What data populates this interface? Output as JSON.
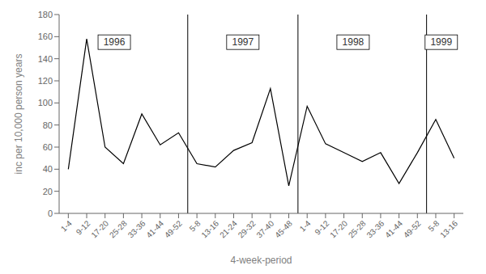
{
  "chart_data": {
    "type": "line",
    "xlabel": "4-week-period",
    "ylabel": "inc per 10,000 person years",
    "categories": [
      "1-4",
      "9-12",
      "17-20",
      "25-28",
      "33-36",
      "41-44",
      "49-52",
      "5-8",
      "13-16",
      "21-24",
      "29-32",
      "37-40",
      "45-48",
      "1-4",
      "9-12",
      "17-20",
      "25-28",
      "33-36",
      "41-44",
      "49-52",
      "5-8",
      "13-16"
    ],
    "values": [
      40,
      158,
      60,
      45,
      90,
      62,
      73,
      45,
      42,
      57,
      64,
      113,
      25,
      97,
      63,
      55,
      47,
      55,
      27,
      55,
      85,
      50
    ],
    "color": "#000000",
    "ylim": [
      0,
      180
    ],
    "yticks": [
      0,
      20,
      40,
      60,
      80,
      100,
      120,
      140,
      160,
      180
    ],
    "grid": false,
    "vlines": [
      6.5,
      12.5,
      19.5
    ],
    "annotations": [
      {
        "text": "1996",
        "x": 2.5,
        "y": 155
      },
      {
        "text": "1997",
        "x": 9.5,
        "y": 155
      },
      {
        "text": "1998",
        "x": 15.5,
        "y": 155
      },
      {
        "text": "1999",
        "x": 20.3,
        "y": 155
      }
    ]
  }
}
